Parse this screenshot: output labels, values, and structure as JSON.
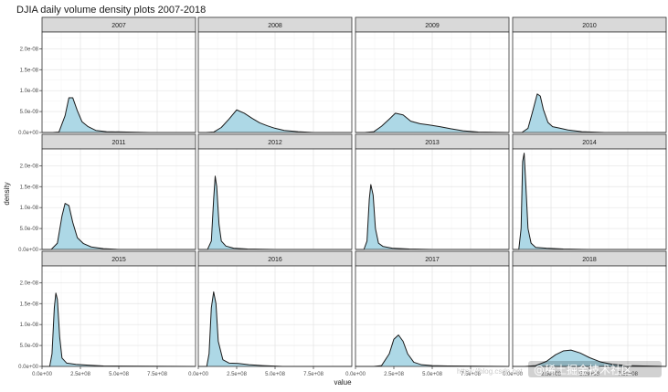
{
  "chart_data": {
    "type": "area",
    "title": "DJIA daily volume density plots 2007-2018",
    "xlabel": "value",
    "ylabel": "density",
    "xlim": [
      0,
      1000000000
    ],
    "ylim": [
      0,
      2.4e-08
    ],
    "x_ticks": [
      0,
      250000000,
      500000000,
      750000000
    ],
    "x_tick_labels": [
      "0.0e+00",
      "2.5e+08",
      "5.0e+08",
      "7.5e+08"
    ],
    "y_ticks": [
      0,
      5e-09,
      1e-08,
      1.5e-08,
      2e-08
    ],
    "y_tick_labels": [
      "0.0e+00",
      "5.0e-09",
      "1.0e-08",
      "1.5e-08",
      "2.0e-08"
    ],
    "grid": true,
    "fill_color": "#add8e6",
    "line_color": "#1a1a1a",
    "strip_color": "#d9d9d9",
    "panels": [
      {
        "label": "2007",
        "x": [
          0,
          70000000,
          110000000,
          150000000,
          175000000,
          200000000,
          230000000,
          260000000,
          300000000,
          350000000,
          420000000,
          550000000,
          700000000,
          1000000000
        ],
        "y": [
          0,
          0,
          1e-10,
          4e-09,
          8.3e-09,
          8.3e-09,
          5.2e-09,
          2.6e-09,
          1.4e-09,
          5e-10,
          2e-10,
          1e-10,
          0,
          0
        ]
      },
      {
        "label": "2008",
        "x": [
          0,
          50000000,
          100000000,
          150000000,
          200000000,
          250000000,
          300000000,
          350000000,
          400000000,
          450000000,
          500000000,
          560000000,
          650000000,
          750000000,
          1000000000
        ],
        "y": [
          0,
          0,
          1e-10,
          1.2e-09,
          3.2e-09,
          5.4e-09,
          4.6e-09,
          3.4e-09,
          2.3e-09,
          1.6e-09,
          1e-09,
          5e-10,
          2e-10,
          0,
          0
        ]
      },
      {
        "label": "2009",
        "x": [
          0,
          60000000,
          120000000,
          170000000,
          220000000,
          260000000,
          310000000,
          360000000,
          420000000,
          480000000,
          550000000,
          620000000,
          700000000,
          800000000,
          1000000000
        ],
        "y": [
          0,
          0,
          2e-10,
          1.5e-09,
          3.2e-09,
          4.6e-09,
          4.2e-09,
          2.7e-09,
          2.1e-09,
          1.8e-09,
          1.4e-09,
          9e-10,
          4e-10,
          1e-10,
          0
        ]
      },
      {
        "label": "2010",
        "x": [
          0,
          60000000,
          100000000,
          130000000,
          160000000,
          180000000,
          200000000,
          230000000,
          260000000,
          300000000,
          360000000,
          450000000,
          600000000,
          1000000000
        ],
        "y": [
          0,
          0,
          1e-09,
          5e-09,
          9.2e-09,
          8.7e-09,
          5.5e-09,
          2.4e-09,
          1.4e-09,
          1.1e-09,
          6e-10,
          2e-10,
          0,
          0
        ]
      },
      {
        "label": "2011",
        "x": [
          0,
          60000000,
          100000000,
          130000000,
          150000000,
          175000000,
          200000000,
          230000000,
          270000000,
          320000000,
          400000000,
          500000000,
          1000000000
        ],
        "y": [
          0,
          0,
          1.5e-09,
          8e-09,
          1.1e-08,
          1.05e-08,
          6.5e-09,
          2.8e-09,
          1.4e-09,
          6e-10,
          2e-10,
          0,
          0
        ]
      },
      {
        "label": "2012",
        "x": [
          0,
          60000000,
          85000000,
          100000000,
          110000000,
          120000000,
          135000000,
          150000000,
          180000000,
          230000000,
          320000000,
          500000000,
          1000000000
        ],
        "y": [
          0,
          0,
          2e-09,
          1.2e-08,
          1.75e-08,
          1.5e-08,
          6e-09,
          2e-09,
          8e-10,
          3e-10,
          1e-10,
          0,
          0
        ]
      },
      {
        "label": "2013",
        "x": [
          0,
          55000000,
          75000000,
          90000000,
          100000000,
          115000000,
          130000000,
          150000000,
          180000000,
          240000000,
          350000000,
          500000000,
          1000000000
        ],
        "y": [
          0,
          0,
          2e-09,
          1.2e-08,
          1.55e-08,
          1.3e-08,
          5e-09,
          1.5e-09,
          7e-10,
          3e-10,
          1e-10,
          0,
          0
        ]
      },
      {
        "label": "2014",
        "x": [
          0,
          40000000,
          55000000,
          65000000,
          75000000,
          85000000,
          100000000,
          120000000,
          150000000,
          220000000,
          330000000,
          500000000,
          1000000000
        ],
        "y": [
          0,
          0,
          5e-09,
          2.1e-08,
          2.3e-08,
          1.6e-08,
          5e-09,
          1.5e-09,
          5e-10,
          3e-10,
          1e-10,
          0,
          0
        ]
      },
      {
        "label": "2015",
        "x": [
          0,
          50000000,
          65000000,
          80000000,
          90000000,
          100000000,
          115000000,
          130000000,
          160000000,
          220000000,
          300000000,
          400000000,
          1000000000
        ],
        "y": [
          0,
          0,
          3e-09,
          1.4e-08,
          1.75e-08,
          1.6e-08,
          7e-09,
          2e-09,
          8e-10,
          5e-10,
          3e-10,
          1e-10,
          0
        ]
      },
      {
        "label": "2016",
        "x": [
          0,
          55000000,
          70000000,
          85000000,
          100000000,
          115000000,
          130000000,
          160000000,
          200000000,
          260000000,
          330000000,
          420000000,
          550000000,
          1000000000
        ],
        "y": [
          0,
          0,
          3e-09,
          1.4e-08,
          1.78e-08,
          1.5e-08,
          6e-09,
          1.6e-09,
          8e-10,
          7e-10,
          4e-10,
          2e-10,
          0,
          0
        ]
      },
      {
        "label": "2017",
        "x": [
          0,
          120000000,
          170000000,
          220000000,
          250000000,
          280000000,
          310000000,
          340000000,
          380000000,
          430000000,
          500000000,
          600000000,
          1000000000
        ],
        "y": [
          0,
          0,
          2e-10,
          3e-09,
          6.5e-09,
          7.5e-09,
          6e-09,
          3e-09,
          1e-09,
          4e-10,
          2e-10,
          1e-10,
          0
        ]
      },
      {
        "label": "2018",
        "x": [
          0,
          80000000,
          150000000,
          220000000,
          280000000,
          330000000,
          380000000,
          440000000,
          500000000,
          570000000,
          650000000,
          750000000,
          850000000,
          1000000000
        ],
        "y": [
          0,
          0,
          2e-10,
          1.2e-09,
          2.8e-09,
          3.7e-09,
          3.9e-09,
          3.2e-09,
          2.1e-09,
          1.1e-09,
          5e-10,
          2e-10,
          1e-10,
          0
        ]
      }
    ]
  },
  "watermark": {
    "text": "@稀土掘金技术社区",
    "faint_text": "https://blog.csdn.net"
  }
}
